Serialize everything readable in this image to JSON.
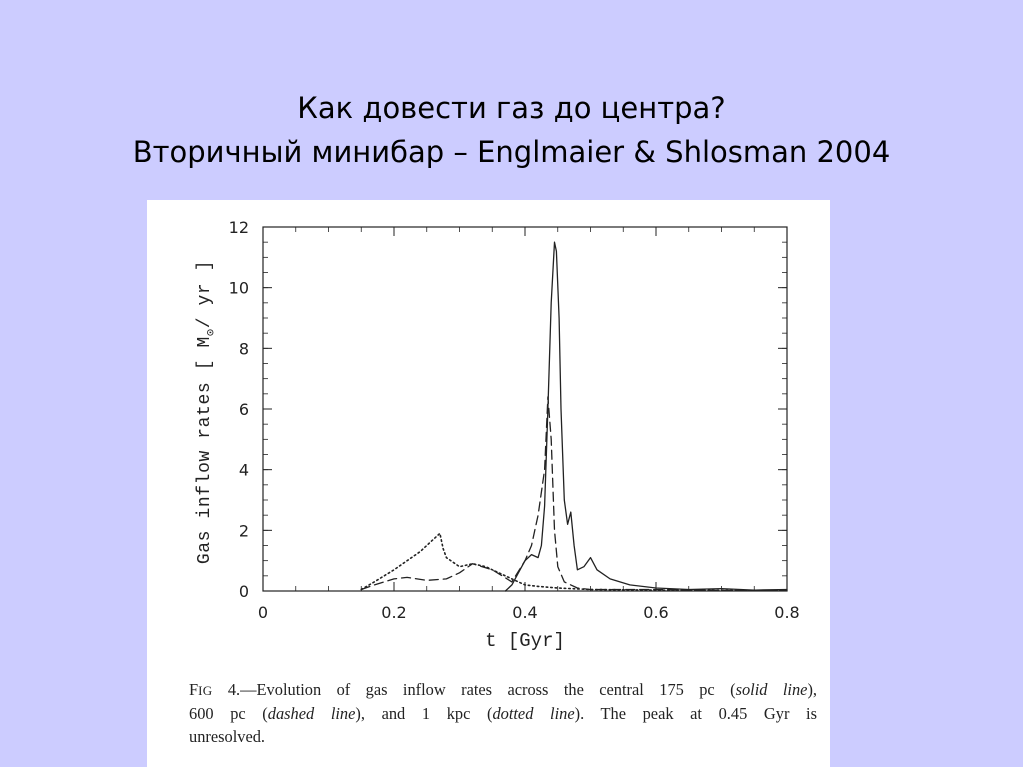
{
  "slide": {
    "title_line1": "Как довести газ до центра?",
    "title_line2": "Вторичный минибар – Englmaier & Shlosman 2004"
  },
  "caption": {
    "fig_label_initial": "F",
    "fig_label_rest": "IG",
    "fig_number": " 4.",
    "text1": "—Evolution of gas inflow rates across the central 175 pc (",
    "solid": "solid line",
    "text2": "),",
    "text3": "600 pc (",
    "dashed": "dashed line",
    "text4": "), and 1 kpc (",
    "dotted": "dotted line",
    "text5": "). The peak at 0.45 Gyr is",
    "text6": "unresolved."
  },
  "chart_data": {
    "type": "line",
    "xlabel": "t [Gyr]",
    "ylabel": "Gas inflow rates [ M⊙/ yr ]",
    "ylabel_prefix": "Gas inflow rates [ M",
    "ylabel_sub": "⊙",
    "ylabel_suffix": "/ yr ]",
    "xlim": [
      0,
      0.8
    ],
    "ylim": [
      0,
      12
    ],
    "x_ticks": [
      0,
      0.2,
      0.4,
      0.6,
      0.8
    ],
    "x_tick_labels": [
      "0",
      "0.2",
      "0.4",
      "0.6",
      "0.8"
    ],
    "y_ticks": [
      0,
      2,
      4,
      6,
      8,
      10,
      12
    ],
    "y_tick_labels": [
      "0",
      "2",
      "4",
      "6",
      "8",
      "10",
      "12"
    ],
    "grid": false,
    "series": [
      {
        "style": "solid",
        "x": [
          0.37,
          0.38,
          0.39,
          0.4,
          0.41,
          0.42,
          0.425,
          0.43,
          0.435,
          0.44,
          0.445,
          0.448,
          0.452,
          0.455,
          0.46,
          0.465,
          0.47,
          0.475,
          0.48,
          0.49,
          0.5,
          0.51,
          0.53,
          0.56,
          0.6,
          0.65,
          0.7,
          0.75,
          0.8
        ],
        "y": [
          0.0,
          0.2,
          0.6,
          1.0,
          1.2,
          1.1,
          1.5,
          2.8,
          6.0,
          9.5,
          11.5,
          11.2,
          9.0,
          6.0,
          3.0,
          2.2,
          2.6,
          1.5,
          0.7,
          0.8,
          1.1,
          0.7,
          0.4,
          0.2,
          0.1,
          0.05,
          0.08,
          0.03,
          0.05
        ]
      },
      {
        "style": "dashed",
        "x": [
          0.15,
          0.17,
          0.2,
          0.22,
          0.25,
          0.28,
          0.3,
          0.32,
          0.35,
          0.38,
          0.4,
          0.41,
          0.42,
          0.43,
          0.435,
          0.44,
          0.445,
          0.45,
          0.46,
          0.48,
          0.5,
          0.55,
          0.6,
          0.7,
          0.8
        ],
        "y": [
          0.05,
          0.2,
          0.4,
          0.45,
          0.35,
          0.4,
          0.6,
          0.9,
          0.7,
          0.3,
          1.0,
          1.5,
          2.5,
          4.0,
          6.4,
          5.0,
          2.0,
          0.8,
          0.3,
          0.1,
          0.05,
          0.05,
          0.05,
          0.02,
          0.02
        ]
      },
      {
        "style": "dotted",
        "x": [
          0.15,
          0.17,
          0.2,
          0.22,
          0.24,
          0.26,
          0.27,
          0.275,
          0.28,
          0.3,
          0.32,
          0.34,
          0.36,
          0.38,
          0.4,
          0.42,
          0.45,
          0.5,
          0.6,
          0.7,
          0.8
        ],
        "y": [
          0.05,
          0.3,
          0.7,
          1.0,
          1.3,
          1.7,
          1.9,
          1.4,
          1.1,
          0.8,
          0.9,
          0.8,
          0.6,
          0.4,
          0.2,
          0.15,
          0.1,
          0.05,
          0.03,
          0.02,
          0.02
        ]
      }
    ]
  }
}
